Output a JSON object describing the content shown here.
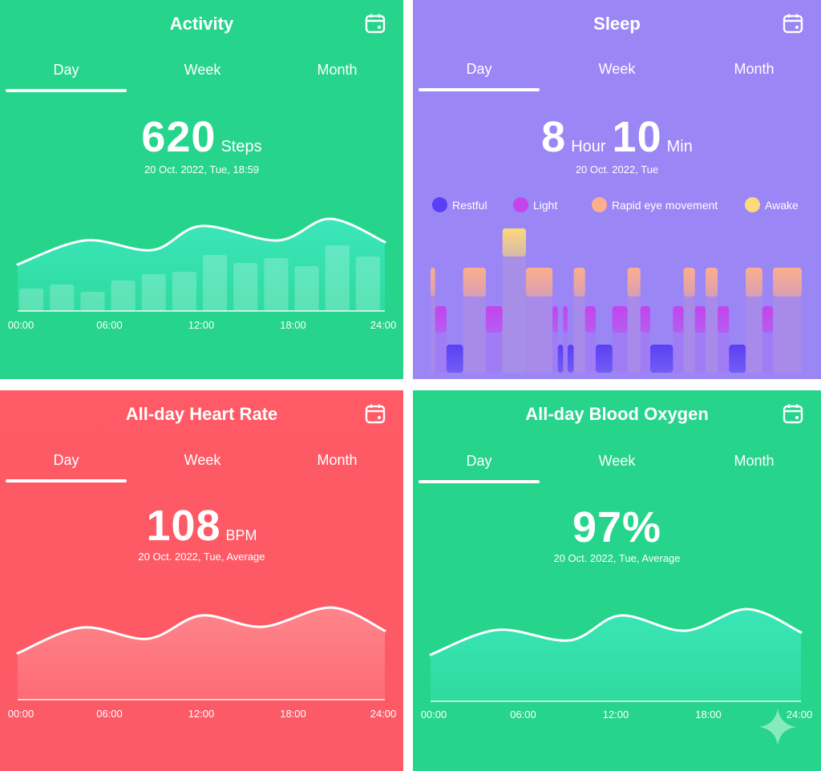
{
  "colors": {
    "activity": "#26d48c",
    "sleep": "#9b86f6",
    "heart": "#ff5a66",
    "oxygen": "#26d48c",
    "restful": "#5a40f4",
    "light": "#c444ee",
    "rem": "#fdaf8c",
    "awake": "#fcd97a"
  },
  "tabs": [
    "Day",
    "Week",
    "Month"
  ],
  "x_ticks": [
    "00:00",
    "06:00",
    "12:00",
    "18:00",
    "24:00"
  ],
  "activity": {
    "title": "Activity",
    "value": "620",
    "unit": "Steps",
    "date": "20 Oct. 2022, Tue, 18:59"
  },
  "sleep": {
    "title": "Sleep",
    "hours": "8",
    "hour_unit": "Hour",
    "minutes": "10",
    "min_unit": "Min",
    "date": "20 Oct. 2022, Tue",
    "legend": [
      {
        "label": "Restful",
        "stage": "restful"
      },
      {
        "label": "Light",
        "stage": "light"
      },
      {
        "label": "Rapid eye movement",
        "stage": "rem"
      },
      {
        "label": "Awake",
        "stage": "awake"
      }
    ]
  },
  "heart": {
    "title": "All-day Heart Rate",
    "value": "108",
    "unit": "BPM",
    "date": "20 Oct. 2022, Tue, Average"
  },
  "oxygen": {
    "title": "All-day Blood Oxygen",
    "value": "97%",
    "date": "20 Oct. 2022, Tue, Average"
  },
  "chart_data": [
    {
      "type": "bar",
      "chart": "activity",
      "x_range": [
        "00:00",
        "24:00"
      ],
      "bar_values": [
        28,
        33,
        24,
        38,
        46,
        49,
        70,
        60,
        66,
        56,
        82,
        68
      ],
      "line": {
        "hours": [
          0,
          4.4,
          8.8,
          12,
          17,
          20.4,
          24
        ],
        "values": [
          58,
          88,
          76,
          106,
          88,
          115,
          86
        ]
      }
    },
    {
      "type": "step",
      "chart": "sleep",
      "stages": [
        "rem",
        "light",
        "restful",
        "rem",
        "light",
        "awake",
        "rem",
        "light",
        "restful",
        "light",
        "restful",
        "rem",
        "light",
        "restful",
        "light",
        "rem",
        "light",
        "restful",
        "light",
        "rem",
        "light",
        "rem",
        "light",
        "restful",
        "rem",
        "light",
        "rem"
      ],
      "durations_min": [
        6,
        15,
        22,
        30,
        22,
        31,
        35,
        7,
        7,
        6,
        8,
        15,
        14,
        22,
        20,
        17,
        13,
        30,
        14,
        15,
        14,
        16,
        15,
        22,
        22,
        14,
        38
      ]
    },
    {
      "type": "area",
      "chart": "heart",
      "x_range": [
        "00:00",
        "24:00"
      ],
      "hours": [
        0,
        4.2,
        8.5,
        12,
        16,
        20.5,
        24
      ],
      "values": [
        58,
        90,
        76,
        105,
        91,
        115,
        86
      ]
    },
    {
      "type": "area",
      "chart": "oxygen",
      "x_range": [
        "00:00",
        "24:00"
      ],
      "hours": [
        0,
        4.3,
        9,
        12.3,
        16.5,
        20.5,
        24
      ],
      "values": [
        58,
        89,
        76,
        107,
        88,
        115,
        86
      ]
    }
  ]
}
